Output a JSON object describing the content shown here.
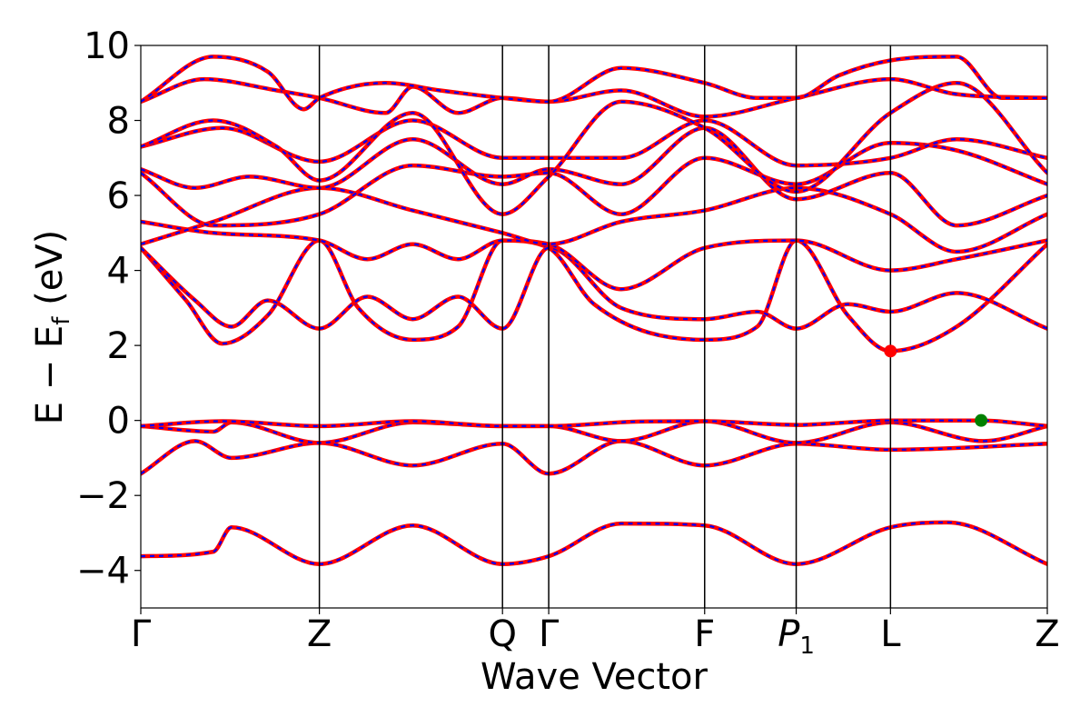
{
  "chart_data": {
    "type": "line",
    "title": "",
    "xlabel": "Wave Vector",
    "ylabel": "E − E_f (eV)",
    "ylabel_main": "E  −  E",
    "ylabel_sub": "f",
    "ylabel_unit": " (eV)",
    "ylim": [
      -5,
      10
    ],
    "yticks": [
      -4,
      -2,
      0,
      2,
      4,
      6,
      8,
      10
    ],
    "ytick_labels": [
      "−4",
      "−2",
      "0",
      "2",
      "4",
      "6",
      "8",
      "10"
    ],
    "kpath": [
      "Γ",
      "Z",
      "Q",
      "Γ",
      "F",
      "P1",
      "L",
      "Z"
    ],
    "kpath_display": [
      {
        "main": "Γ",
        "sub": ""
      },
      {
        "main": "Z",
        "sub": ""
      },
      {
        "main": "Q",
        "sub": ""
      },
      {
        "main": "Γ",
        "sub": ""
      },
      {
        "main": "F",
        "sub": ""
      },
      {
        "main": "P",
        "sub": "1",
        "italic": true
      },
      {
        "main": "L",
        "sub": ""
      },
      {
        "main": "Z",
        "sub": ""
      }
    ],
    "kpoint_positions": [
      0,
      1.97,
      3.99,
      4.5,
      6.22,
      7.23,
      8.27,
      10.0
    ],
    "series_style": [
      {
        "color": "#ff0000",
        "dash": "solid"
      },
      {
        "color": "#0000ff",
        "dash": "dashed"
      }
    ],
    "markers": [
      {
        "label": "CBM",
        "x": 8.27,
        "y": 1.85,
        "color": "#ff0000"
      },
      {
        "label": "VBM",
        "x": 9.27,
        "y": 0.0,
        "color": "#008000"
      }
    ],
    "bands": [
      [
        [
          0,
          -3.62
        ],
        [
          0.8,
          -3.5
        ],
        [
          1.0,
          -2.85
        ],
        [
          1.97,
          -3.83
        ],
        [
          3.0,
          -2.8
        ],
        [
          3.99,
          -3.83
        ],
        [
          4.5,
          -3.62
        ],
        [
          5.3,
          -2.75
        ],
        [
          6.22,
          -2.8
        ],
        [
          7.23,
          -3.83
        ],
        [
          8.27,
          -2.85
        ],
        [
          8.9,
          -2.72
        ],
        [
          10.0,
          -3.83
        ]
      ],
      [
        [
          0,
          -1.42
        ],
        [
          0.6,
          -0.55
        ],
        [
          1.0,
          -1.0
        ],
        [
          1.97,
          -0.6
        ],
        [
          3.0,
          -1.2
        ],
        [
          3.99,
          -0.62
        ],
        [
          4.5,
          -1.42
        ],
        [
          5.3,
          -0.55
        ],
        [
          6.22,
          -1.2
        ],
        [
          7.23,
          -0.62
        ],
        [
          8.27,
          -0.78
        ],
        [
          10.0,
          -0.62
        ]
      ],
      [
        [
          0,
          -0.15
        ],
        [
          0.8,
          -0.3
        ],
        [
          1.0,
          -0.05
        ],
        [
          1.97,
          -0.6
        ],
        [
          3.0,
          -0.05
        ],
        [
          3.99,
          -0.15
        ],
        [
          4.5,
          -0.15
        ],
        [
          5.3,
          -0.55
        ],
        [
          6.22,
          -0.02
        ],
        [
          7.23,
          -0.6
        ],
        [
          8.27,
          -0.05
        ],
        [
          9.3,
          -0.55
        ],
        [
          10.0,
          -0.15
        ]
      ],
      [
        [
          0,
          -0.15
        ],
        [
          0.9,
          -0.02
        ],
        [
          1.97,
          -0.15
        ],
        [
          3.0,
          -0.02
        ],
        [
          3.99,
          -0.15
        ],
        [
          4.5,
          -0.15
        ],
        [
          5.5,
          -0.03
        ],
        [
          6.22,
          -0.02
        ],
        [
          7.23,
          -0.12
        ],
        [
          8.27,
          0.0
        ],
        [
          9.27,
          0.0
        ],
        [
          10.0,
          -0.15
        ]
      ],
      [
        [
          0,
          4.6
        ],
        [
          0.5,
          3.2
        ],
        [
          0.9,
          2.05
        ],
        [
          1.4,
          2.8
        ],
        [
          1.97,
          4.8
        ],
        [
          2.4,
          3.0
        ],
        [
          3.0,
          2.15
        ],
        [
          3.5,
          2.5
        ],
        [
          3.99,
          4.8
        ],
        [
          4.5,
          4.6
        ],
        [
          5.0,
          3.1
        ],
        [
          6.22,
          2.15
        ],
        [
          6.8,
          2.5
        ],
        [
          7.23,
          4.8
        ],
        [
          7.8,
          2.8
        ],
        [
          8.27,
          1.85
        ],
        [
          9.0,
          2.5
        ],
        [
          10.0,
          4.7
        ]
      ],
      [
        [
          0,
          4.6
        ],
        [
          0.6,
          3.2
        ],
        [
          1.0,
          2.5
        ],
        [
          1.4,
          3.2
        ],
        [
          1.97,
          2.45
        ],
        [
          2.5,
          3.3
        ],
        [
          3.0,
          2.7
        ],
        [
          3.5,
          3.3
        ],
        [
          3.99,
          2.45
        ],
        [
          4.5,
          4.6
        ],
        [
          5.3,
          3.0
        ],
        [
          6.22,
          2.7
        ],
        [
          6.8,
          2.9
        ],
        [
          7.23,
          2.45
        ],
        [
          7.8,
          3.1
        ],
        [
          8.27,
          2.9
        ],
        [
          9.0,
          3.4
        ],
        [
          10.0,
          2.45
        ]
      ],
      [
        [
          0,
          5.3
        ],
        [
          0.8,
          5.0
        ],
        [
          1.97,
          4.8
        ],
        [
          2.5,
          4.3
        ],
        [
          3.0,
          4.7
        ],
        [
          3.5,
          4.3
        ],
        [
          3.99,
          4.8
        ],
        [
          4.5,
          4.7
        ],
        [
          5.3,
          3.5
        ],
        [
          6.22,
          4.6
        ],
        [
          7.23,
          4.8
        ],
        [
          8.27,
          4.0
        ],
        [
          9.0,
          4.3
        ],
        [
          10.0,
          4.8
        ]
      ],
      [
        [
          0,
          4.7
        ],
        [
          0.8,
          5.3
        ],
        [
          1.97,
          6.2
        ],
        [
          3.0,
          5.6
        ],
        [
          3.99,
          5.0
        ],
        [
          4.5,
          4.7
        ],
        [
          5.3,
          5.3
        ],
        [
          6.22,
          5.6
        ],
        [
          7.23,
          6.2
        ],
        [
          8.27,
          5.5
        ],
        [
          9.0,
          4.5
        ],
        [
          10.0,
          5.5
        ]
      ],
      [
        [
          0,
          6.6
        ],
        [
          0.8,
          5.2
        ],
        [
          1.97,
          5.5
        ],
        [
          3.0,
          6.8
        ],
        [
          3.99,
          6.5
        ],
        [
          4.5,
          6.6
        ],
        [
          5.3,
          5.5
        ],
        [
          6.22,
          7.0
        ],
        [
          7.23,
          6.3
        ],
        [
          8.27,
          7.4
        ],
        [
          9.0,
          7.2
        ],
        [
          10.0,
          6.3
        ]
      ],
      [
        [
          0,
          6.7
        ],
        [
          0.6,
          6.2
        ],
        [
          1.2,
          6.5
        ],
        [
          1.97,
          6.2
        ],
        [
          3.0,
          7.5
        ],
        [
          3.99,
          6.3
        ],
        [
          4.5,
          6.7
        ],
        [
          5.3,
          6.3
        ],
        [
          6.22,
          7.8
        ],
        [
          7.23,
          5.9
        ],
        [
          8.27,
          6.6
        ],
        [
          9.0,
          5.2
        ],
        [
          10.0,
          6.0
        ]
      ],
      [
        [
          0,
          7.3
        ],
        [
          0.9,
          7.8
        ],
        [
          1.97,
          6.9
        ],
        [
          3.0,
          8.0
        ],
        [
          3.99,
          7.0
        ],
        [
          4.5,
          7.0
        ],
        [
          5.3,
          7.0
        ],
        [
          6.22,
          8.0
        ],
        [
          7.23,
          6.8
        ],
        [
          8.27,
          7.0
        ],
        [
          9.0,
          7.5
        ],
        [
          10.0,
          7.0
        ]
      ],
      [
        [
          0,
          7.3
        ],
        [
          0.8,
          8.0
        ],
        [
          1.5,
          7.3
        ],
        [
          1.97,
          6.4
        ],
        [
          3.0,
          8.2
        ],
        [
          3.99,
          5.5
        ],
        [
          4.5,
          6.5
        ],
        [
          5.3,
          8.5
        ],
        [
          6.22,
          7.8
        ],
        [
          7.23,
          6.1
        ],
        [
          8.27,
          8.2
        ],
        [
          9.0,
          9.0
        ],
        [
          10.0,
          6.6
        ]
      ],
      [
        [
          0,
          8.5
        ],
        [
          0.7,
          9.1
        ],
        [
          1.5,
          8.8
        ],
        [
          1.97,
          8.6
        ],
        [
          2.7,
          8.2
        ],
        [
          3.0,
          8.9
        ],
        [
          3.5,
          8.2
        ],
        [
          3.99,
          8.6
        ],
        [
          4.5,
          8.5
        ],
        [
          5.3,
          8.8
        ],
        [
          6.22,
          8.1
        ],
        [
          7.23,
          8.6
        ],
        [
          8.27,
          9.1
        ],
        [
          9.0,
          8.7
        ],
        [
          10.0,
          8.6
        ]
      ],
      [
        [
          0,
          8.5
        ],
        [
          0.8,
          9.7
        ],
        [
          1.4,
          9.3
        ],
        [
          1.8,
          8.3
        ],
        [
          1.97,
          8.6
        ],
        [
          2.7,
          9.0
        ],
        [
          3.3,
          8.8
        ],
        [
          3.99,
          8.6
        ],
        [
          4.5,
          8.5
        ],
        [
          5.3,
          9.4
        ],
        [
          6.22,
          9.0
        ],
        [
          6.8,
          8.6
        ],
        [
          7.23,
          8.6
        ],
        [
          7.7,
          9.2
        ],
        [
          8.27,
          9.6
        ],
        [
          9.0,
          9.7
        ],
        [
          9.5,
          8.6
        ],
        [
          10.0,
          8.6
        ]
      ]
    ]
  }
}
